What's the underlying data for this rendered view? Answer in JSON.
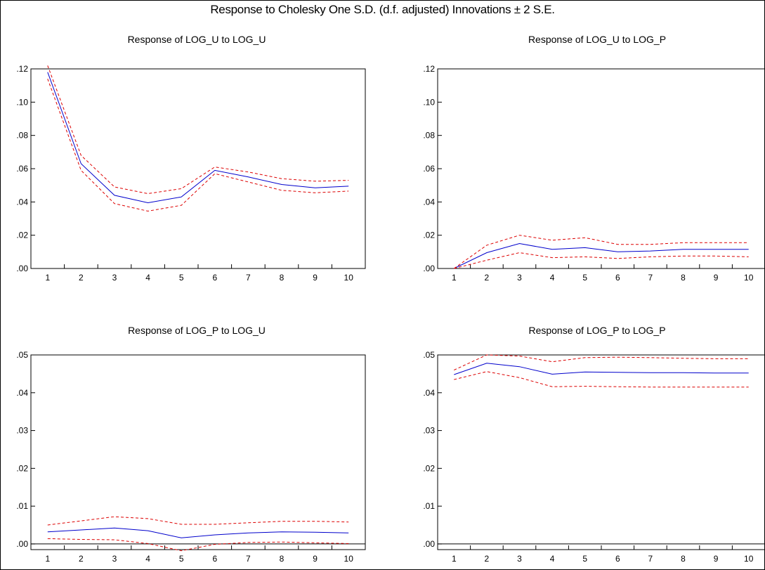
{
  "title": "Response to Cholesky One S.D. (d.f. adjusted) Innovations ± 2 S.E.",
  "colors": {
    "response": "#0000cc",
    "band": "#dd0000",
    "axis": "#000000"
  },
  "chart_data": [
    {
      "type": "line",
      "title": "Response of LOG_U to LOG_U",
      "x": [
        1,
        2,
        3,
        4,
        5,
        6,
        7,
        8,
        9,
        10
      ],
      "ylim": [
        0,
        0.12
      ],
      "yticks": [
        ".00",
        ".02",
        ".04",
        ".06",
        ".08",
        ".10",
        ".12"
      ],
      "ytick_values": [
        0,
        0.02,
        0.04,
        0.06,
        0.08,
        0.1,
        0.12
      ],
      "series": [
        {
          "role": "response",
          "values": [
            0.118,
            0.063,
            0.044,
            0.0395,
            0.043,
            0.059,
            0.055,
            0.0505,
            0.0485,
            0.0495
          ]
        },
        {
          "role": "upper",
          "values": [
            0.122,
            0.068,
            0.049,
            0.045,
            0.048,
            0.061,
            0.058,
            0.054,
            0.0525,
            0.053
          ]
        },
        {
          "role": "lower",
          "values": [
            0.114,
            0.059,
            0.039,
            0.0345,
            0.038,
            0.057,
            0.052,
            0.047,
            0.0455,
            0.0465
          ]
        }
      ]
    },
    {
      "type": "line",
      "title": "Response of LOG_U to LOG_P",
      "x": [
        1,
        2,
        3,
        4,
        5,
        6,
        7,
        8,
        9,
        10
      ],
      "ylim": [
        0,
        0.12
      ],
      "yticks": [
        ".00",
        ".02",
        ".04",
        ".06",
        ".08",
        ".10",
        ".12"
      ],
      "ytick_values": [
        0,
        0.02,
        0.04,
        0.06,
        0.08,
        0.1,
        0.12
      ],
      "series": [
        {
          "role": "response",
          "values": [
            0.0,
            0.0095,
            0.015,
            0.0115,
            0.0125,
            0.01,
            0.0105,
            0.0115,
            0.0115,
            0.0115
          ]
        },
        {
          "role": "upper",
          "values": [
            0.0,
            0.014,
            0.02,
            0.017,
            0.0185,
            0.0145,
            0.0145,
            0.0155,
            0.0155,
            0.0155
          ]
        },
        {
          "role": "lower",
          "values": [
            0.0,
            0.005,
            0.0095,
            0.0065,
            0.007,
            0.006,
            0.007,
            0.0075,
            0.0075,
            0.007
          ]
        }
      ]
    },
    {
      "type": "line",
      "title": "Response of LOG_P to LOG_U",
      "x": [
        1,
        2,
        3,
        4,
        5,
        6,
        7,
        8,
        9,
        10
      ],
      "ylim": [
        -0.0015,
        0.05
      ],
      "yticks": [
        ".00",
        ".01",
        ".02",
        ".03",
        ".04",
        ".05"
      ],
      "ytick_values": [
        0,
        0.01,
        0.02,
        0.03,
        0.04,
        0.05
      ],
      "zero_line": true,
      "series": [
        {
          "role": "response",
          "values": [
            0.0032,
            0.0037,
            0.0042,
            0.0035,
            0.0016,
            0.0024,
            0.0029,
            0.0032,
            0.0031,
            0.0029
          ]
        },
        {
          "role": "upper",
          "values": [
            0.005,
            0.0061,
            0.0072,
            0.0067,
            0.0052,
            0.0052,
            0.0056,
            0.006,
            0.006,
            0.0058
          ]
        },
        {
          "role": "lower",
          "values": [
            0.0014,
            0.0012,
            0.0011,
            0.0001,
            -0.0018,
            -0.0001,
            0.0004,
            0.0005,
            0.0003,
            0.0001
          ]
        }
      ]
    },
    {
      "type": "line",
      "title": "Response of LOG_P to LOG_P",
      "x": [
        1,
        2,
        3,
        4,
        5,
        6,
        7,
        8,
        9,
        10
      ],
      "ylim": [
        -0.0015,
        0.05
      ],
      "yticks": [
        ".00",
        ".01",
        ".02",
        ".03",
        ".04",
        ".05"
      ],
      "ytick_values": [
        0,
        0.01,
        0.02,
        0.03,
        0.04,
        0.05
      ],
      "zero_line": true,
      "series": [
        {
          "role": "response",
          "values": [
            0.0448,
            0.0478,
            0.0469,
            0.0449,
            0.0455,
            0.0454,
            0.0453,
            0.0453,
            0.0452,
            0.0452
          ]
        },
        {
          "role": "upper",
          "values": [
            0.046,
            0.05,
            0.0497,
            0.0482,
            0.0493,
            0.0494,
            0.0493,
            0.0491,
            0.049,
            0.049
          ]
        },
        {
          "role": "lower",
          "values": [
            0.0435,
            0.0456,
            0.044,
            0.0416,
            0.0417,
            0.0416,
            0.0415,
            0.0415,
            0.0415,
            0.0415
          ]
        }
      ]
    }
  ]
}
